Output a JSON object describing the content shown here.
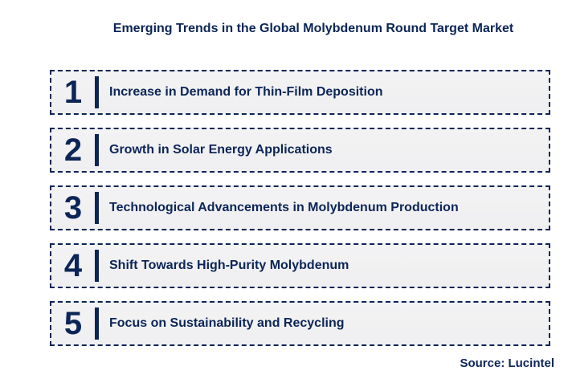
{
  "page": {
    "title": "Emerging Trends in the Global Molybdenum Round Target Market",
    "source": "Source: Lucintel"
  },
  "colors": {
    "navy": "#0C2557",
    "box_background": "#F1F1F2",
    "page_background": "#FFFFFF"
  },
  "trends": [
    {
      "number": "1",
      "label": "Increase in Demand for Thin-Film Deposition"
    },
    {
      "number": "2",
      "label": "Growth in Solar Energy Applications"
    },
    {
      "number": "3",
      "label": "Technological Advancements in Molybdenum Production"
    },
    {
      "number": "4",
      "label": "Shift Towards High-Purity Molybdenum"
    },
    {
      "number": "5",
      "label": "Focus on Sustainability and Recycling"
    }
  ]
}
